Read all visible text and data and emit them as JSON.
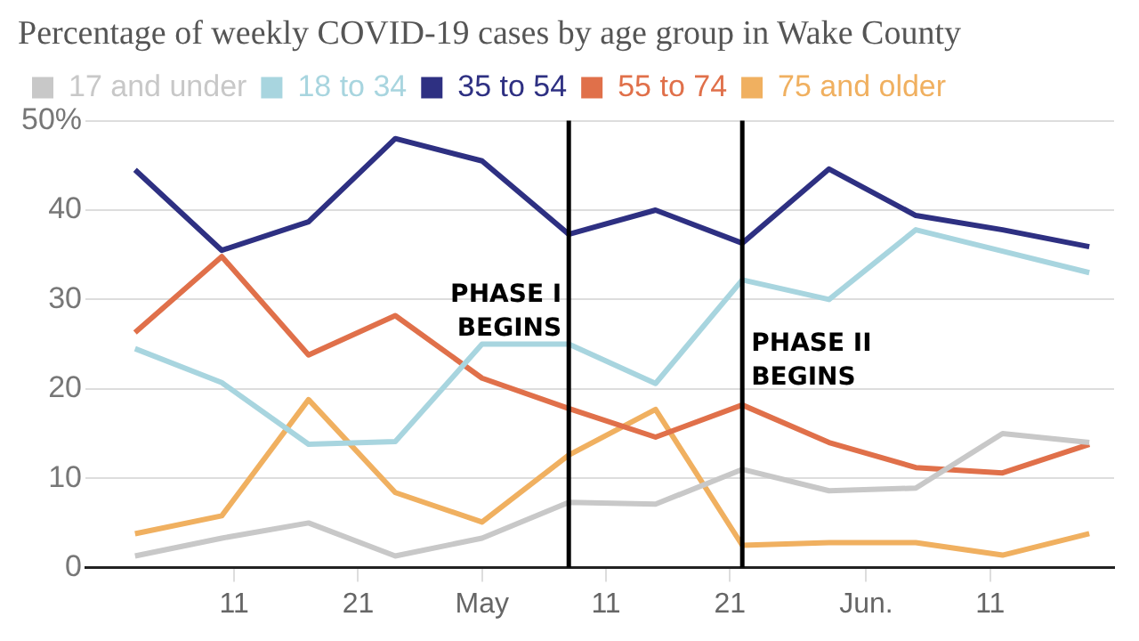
{
  "chart_data": {
    "type": "line",
    "title": "Percentage of weekly COVID-19 cases by age group in Wake County",
    "x": [
      "--04-03",
      "--04-10",
      "--04-17",
      "--04-24",
      "--05-01",
      "--05-08",
      "--05-15",
      "--05-22",
      "--05-29",
      "--06-05",
      "--06-12",
      "--06-19"
    ],
    "series": [
      {
        "name": "17 and under",
        "color": "#c8c8c8",
        "values": [
          1.3,
          3.3,
          5,
          1.3,
          3.3,
          7.3,
          7.1,
          11,
          8.6,
          8.9,
          15,
          14
        ]
      },
      {
        "name": "18 to 34",
        "color": "#a8d5df",
        "values": [
          24.5,
          20.7,
          13.8,
          14.1,
          25,
          25,
          20.6,
          32.2,
          30,
          37.8,
          35.4,
          33
        ]
      },
      {
        "name": "35 to 54",
        "color": "#2e3082",
        "values": [
          44.5,
          35.5,
          38.7,
          48,
          45.5,
          37.3,
          40,
          36.3,
          44.6,
          39.4,
          37.8,
          35.9
        ]
      },
      {
        "name": "55 to 74",
        "color": "#e0704a",
        "values": [
          26.3,
          34.8,
          23.8,
          28.2,
          21.2,
          17.8,
          14.6,
          18.2,
          14,
          11.2,
          10.6,
          13.8
        ]
      },
      {
        "name": "75 and older",
        "color": "#f0b060",
        "values": [
          3.8,
          5.8,
          18.8,
          8.4,
          5.1,
          12.6,
          17.7,
          2.5,
          2.8,
          2.8,
          1.4,
          3.8
        ]
      }
    ],
    "xlim": [
      "--03-30",
      "--06-21"
    ],
    "xticks": [
      {
        "value": "--04-11",
        "label": "11"
      },
      {
        "value": "--04-21",
        "label": "21"
      },
      {
        "value": "--05-01",
        "label": "May"
      },
      {
        "value": "--05-11",
        "label": "11"
      },
      {
        "value": "--05-21",
        "label": "21"
      },
      {
        "value": "--06-01",
        "label": "Jun."
      },
      {
        "value": "--06-11",
        "label": "11"
      }
    ],
    "ylim": [
      0,
      50
    ],
    "yticks": [
      0,
      10,
      20,
      30,
      40,
      {
        "value": 50,
        "label": "50%"
      }
    ],
    "ref_lines": [
      {
        "axis": "x",
        "value": "--05-08",
        "label": "PHASE I BEGINS",
        "color": "#000000"
      },
      {
        "axis": "x",
        "value": "--05-22",
        "label": "PHASE II BEGINS",
        "color": "#000000"
      }
    ],
    "grid": "y",
    "legend": "top left",
    "marker": "none",
    "line_style": "solid"
  }
}
